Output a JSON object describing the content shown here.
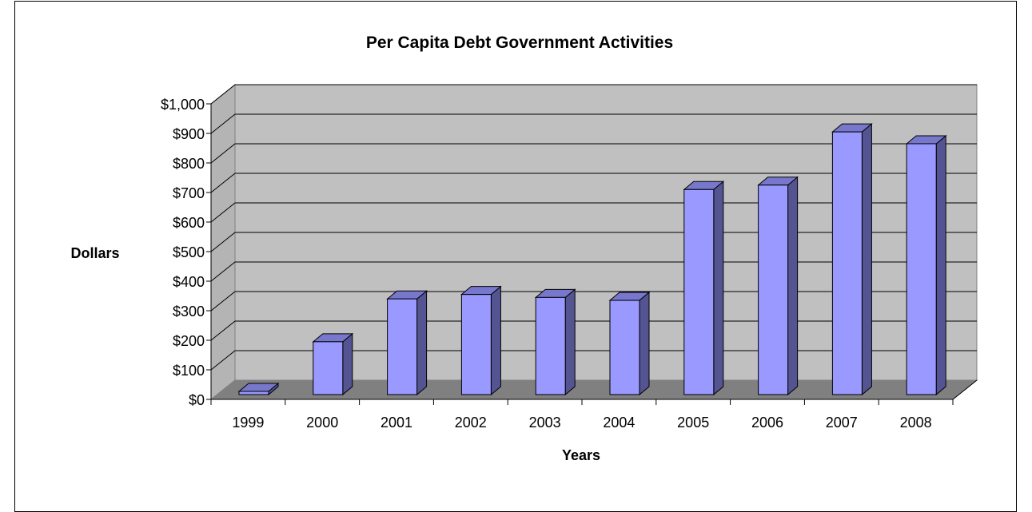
{
  "chart_data": {
    "type": "bar",
    "title": "Per Capita Debt Government Activities",
    "xlabel": "Years",
    "ylabel": "Dollars",
    "categories": [
      "1999",
      "2000",
      "2001",
      "2002",
      "2003",
      "2004",
      "2005",
      "2006",
      "2007",
      "2008"
    ],
    "values": [
      15,
      195,
      340,
      355,
      345,
      335,
      710,
      725,
      905,
      865
    ],
    "ylim": [
      0,
      1000
    ],
    "yticks": [
      0,
      100,
      200,
      300,
      400,
      500,
      600,
      700,
      800,
      900,
      1000
    ],
    "ytick_labels": [
      "$0",
      "$100",
      "$200",
      "$300",
      "$400",
      "$500",
      "$600",
      "$700",
      "$800",
      "$900",
      "$1,000"
    ],
    "grid": true,
    "legend": "none",
    "colors": {
      "bar_front": "#9999ff",
      "bar_side": "#545492",
      "bar_top": "#7777cc",
      "wall": "#c0c0c0",
      "side_wall": "#b4b4b4",
      "floor": "#808080"
    }
  }
}
